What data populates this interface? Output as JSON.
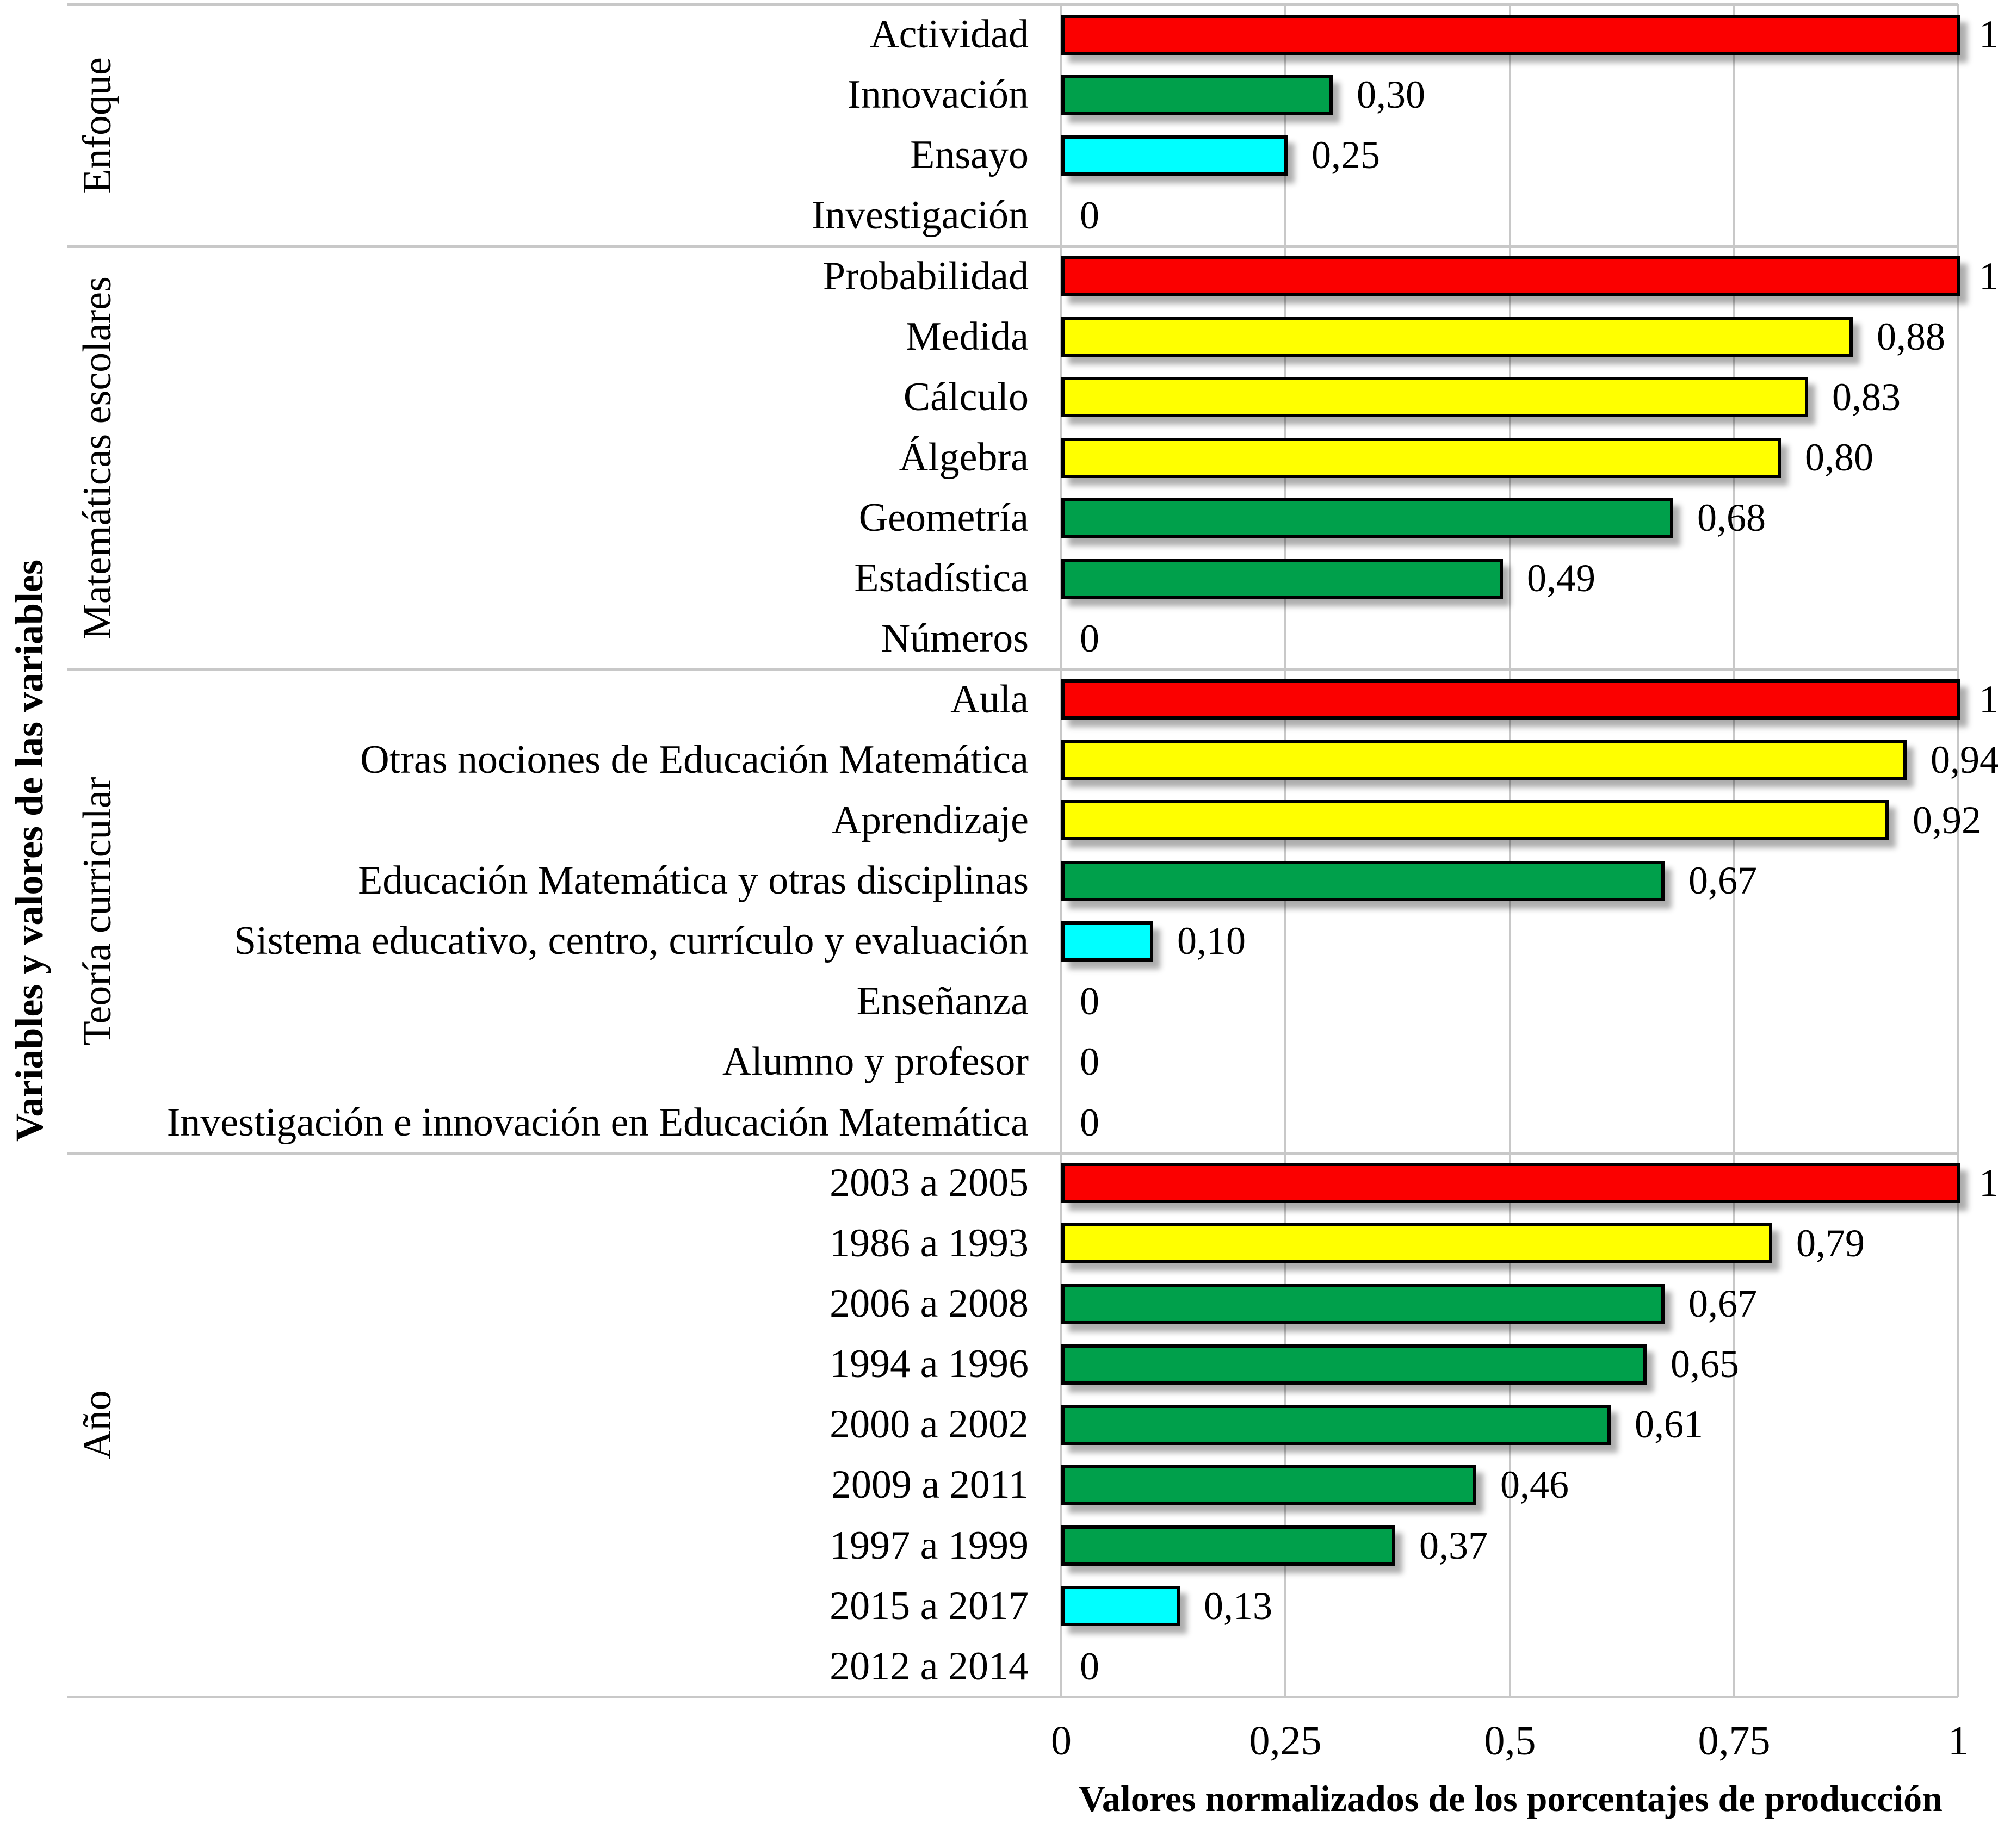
{
  "chart_data": {
    "type": "bar",
    "orientation": "horizontal",
    "title": "",
    "xlabel": "Valores normalizados de los porcentajes de producción",
    "ylabel": "Variables y valores de las variables",
    "xlim": [
      0,
      1
    ],
    "grid": true,
    "legend": false,
    "decimal_separator": ",",
    "x_ticks": [
      {
        "label": "0",
        "value": 0
      },
      {
        "label": "0,25",
        "value": 0.25
      },
      {
        "label": "0,5",
        "value": 0.5
      },
      {
        "label": "0,75",
        "value": 0.75
      },
      {
        "label": "1",
        "value": 1
      }
    ],
    "palette": {
      "red": "#fb0000",
      "yellow": "#ffff00",
      "green": "#00a04b",
      "cyan": "#00ffff"
    },
    "groups": [
      {
        "name": "Enfoque",
        "rows": [
          {
            "label": "Actividad",
            "value": 1,
            "value_label": "1",
            "color": "red"
          },
          {
            "label": "Innovación",
            "value": 0.3,
            "value_label": "0,30",
            "color": "green"
          },
          {
            "label": "Ensayo",
            "value": 0.25,
            "value_label": "0,25",
            "color": "cyan"
          },
          {
            "label": "Investigación",
            "value": 0,
            "value_label": "0",
            "color": null
          }
        ]
      },
      {
        "name": "Matemáticas escolares",
        "rows": [
          {
            "label": "Probabilidad",
            "value": 1,
            "value_label": "1",
            "color": "red"
          },
          {
            "label": "Medida",
            "value": 0.88,
            "value_label": "0,88",
            "color": "yellow"
          },
          {
            "label": "Cálculo",
            "value": 0.83,
            "value_label": "0,83",
            "color": "yellow"
          },
          {
            "label": "Álgebra",
            "value": 0.8,
            "value_label": "0,80",
            "color": "yellow"
          },
          {
            "label": "Geometría",
            "value": 0.68,
            "value_label": "0,68",
            "color": "green"
          },
          {
            "label": "Estadística",
            "value": 0.49,
            "value_label": "0,49",
            "color": "green"
          },
          {
            "label": "Números",
            "value": 0,
            "value_label": "0",
            "color": null
          }
        ]
      },
      {
        "name": "Teoría curricular",
        "rows": [
          {
            "label": "Aula",
            "value": 1,
            "value_label": "1",
            "color": "red"
          },
          {
            "label": "Otras nociones de Educación Matemática",
            "value": 0.94,
            "value_label": "0,94",
            "color": "yellow"
          },
          {
            "label": "Aprendizaje",
            "value": 0.92,
            "value_label": "0,92",
            "color": "yellow"
          },
          {
            "label": "Educación Matemática y otras disciplinas",
            "value": 0.67,
            "value_label": "0,67",
            "color": "green"
          },
          {
            "label": "Sistema educativo, centro, currículo y evaluación",
            "value": 0.1,
            "value_label": "0,10",
            "color": "cyan"
          },
          {
            "label": "Enseñanza",
            "value": 0,
            "value_label": "0",
            "color": null
          },
          {
            "label": "Alumno y profesor",
            "value": 0,
            "value_label": "0",
            "color": null
          },
          {
            "label": "Investigación e innovación en Educación Matemática",
            "value": 0,
            "value_label": "0",
            "color": null
          }
        ]
      },
      {
        "name": "Año",
        "rows": [
          {
            "label": "2003 a 2005",
            "value": 1,
            "value_label": "1",
            "color": "red"
          },
          {
            "label": "1986 a 1993",
            "value": 0.79,
            "value_label": "0,79",
            "color": "yellow"
          },
          {
            "label": "2006 a 2008",
            "value": 0.67,
            "value_label": "0,67",
            "color": "green"
          },
          {
            "label": "1994 a 1996",
            "value": 0.65,
            "value_label": "0,65",
            "color": "green"
          },
          {
            "label": "2000 a 2002",
            "value": 0.61,
            "value_label": "0,61",
            "color": "green"
          },
          {
            "label": "2009 a 2011",
            "value": 0.46,
            "value_label": "0,46",
            "color": "green"
          },
          {
            "label": "1997 a 1999",
            "value": 0.37,
            "value_label": "0,37",
            "color": "green"
          },
          {
            "label": "2015 a 2017",
            "value": 0.13,
            "value_label": "0,13",
            "color": "cyan"
          },
          {
            "label": "2012 a 2014",
            "value": 0,
            "value_label": "0",
            "color": null
          }
        ]
      }
    ]
  }
}
